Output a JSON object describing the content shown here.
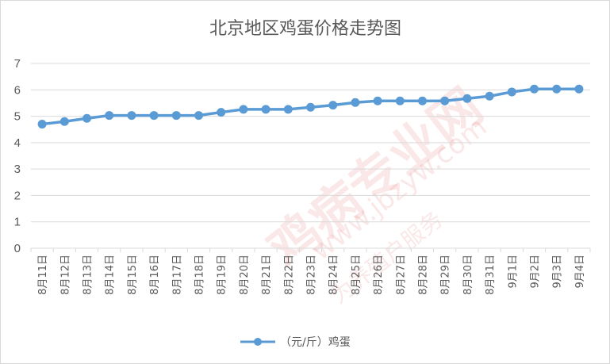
{
  "chart_data": {
    "type": "line",
    "title": "北京地区鸡蛋价格走势图",
    "xlabel": "",
    "ylabel": "",
    "ylim": [
      0,
      7
    ],
    "yticks": [
      0,
      1,
      2,
      3,
      4,
      5,
      6,
      7
    ],
    "grid": true,
    "legend_position": "bottom",
    "categories": [
      "8月11日",
      "8月12日",
      "8月13日",
      "8月14日",
      "8月15日",
      "8月16日",
      "8月17日",
      "8月18日",
      "8月19日",
      "8月20日",
      "8月21日",
      "8月22日",
      "8月23日",
      "8月24日",
      "8月25日",
      "8月26日",
      "8月27日",
      "8月28日",
      "8月29日",
      "8月30日",
      "8月31日",
      "9月1日",
      "9月2日",
      "9月3日",
      "9月4日"
    ],
    "series": [
      {
        "name": "（元/斤）鸡蛋",
        "color": "#5b9bd5",
        "values": [
          4.7,
          4.8,
          4.92,
          5.03,
          5.03,
          5.03,
          5.03,
          5.03,
          5.15,
          5.26,
          5.26,
          5.26,
          5.34,
          5.42,
          5.52,
          5.58,
          5.58,
          5.58,
          5.58,
          5.67,
          5.76,
          5.92,
          6.03,
          6.03,
          6.03
        ]
      }
    ]
  },
  "watermark": {
    "brand": "鸡病专业网",
    "url": "www.jbzyw.com",
    "slogan": "为养殖户服务"
  },
  "colors": {
    "series": "#5b9bd5",
    "grid": "#d9d9d9",
    "text": "#595959"
  }
}
